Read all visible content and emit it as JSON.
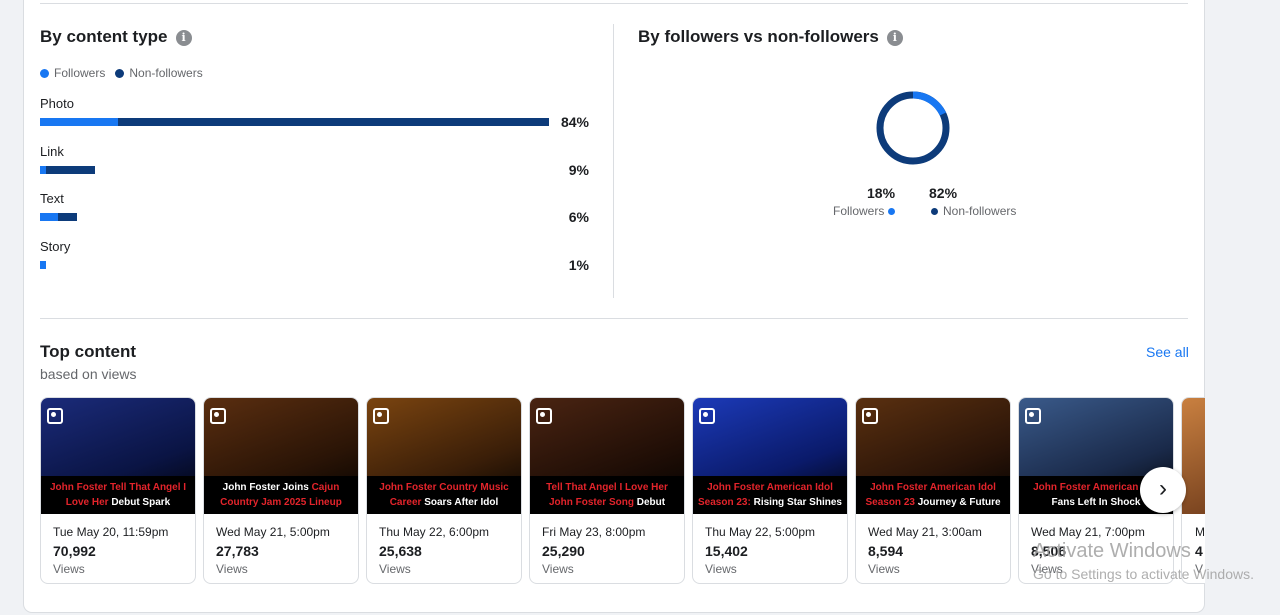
{
  "content_type": {
    "title": "By content type",
    "legend": {
      "followers": "Followers",
      "non_followers": "Non-followers"
    },
    "rows": [
      {
        "label": "Photo",
        "pct": "84%",
        "followers_frac": 0.155,
        "nonfollowers_frac": 0.855
      },
      {
        "label": "Link",
        "pct": "9%",
        "followers_frac": 0.012,
        "nonfollowers_frac": 0.098
      },
      {
        "label": "Text",
        "pct": "6%",
        "followers_frac": 0.036,
        "nonfollowers_frac": 0.038
      },
      {
        "label": "Story",
        "pct": "1%",
        "followers_frac": 0.012,
        "nonfollowers_frac": 0.0
      }
    ]
  },
  "followers_split": {
    "title": "By followers vs non-followers",
    "followers_pct": "18%",
    "non_followers_pct": "82%",
    "followers_label": "Followers",
    "non_followers_label": "Non-followers",
    "followers_value": 18,
    "non_followers_value": 82
  },
  "top_content": {
    "title": "Top content",
    "subtitle": "based on views",
    "see_all": "See all",
    "items": [
      {
        "cap_red": "John Foster Tell That Angel I Love Her",
        "cap_white": "Debut Spark",
        "date": "Tue May 20, 11:59pm",
        "views": "70,992",
        "unit": "Views"
      },
      {
        "cap_white": "John Foster Joins",
        "cap_red": "Cajun Country Jam 2025 Lineup",
        "date": "Wed May 21, 5:00pm",
        "views": "27,783",
        "unit": "Views"
      },
      {
        "cap_red": "John Foster Country Music Career",
        "cap_white": "Soars After Idol",
        "date": "Thu May 22, 6:00pm",
        "views": "25,638",
        "unit": "Views"
      },
      {
        "cap_red": "Tell That Angel I Love Her John Foster Song",
        "cap_white": "Debut",
        "date": "Fri May 23, 8:00pm",
        "views": "25,290",
        "unit": "Views"
      },
      {
        "cap_red": "John Foster American Idol Season 23:",
        "cap_white": "Rising Star Shines",
        "date": "Thu May 22, 5:00pm",
        "views": "15,402",
        "unit": "Views"
      },
      {
        "cap_red": "John Foster American Idol Season 23",
        "cap_white": "Journey & Future",
        "date": "Wed May 21, 3:00am",
        "views": "8,594",
        "unit": "Views"
      },
      {
        "cap_red": "John Foster American Idol",
        "cap_white": "Fans Left In Shock",
        "date": "Wed May 21, 7:00pm",
        "views": "8,506",
        "unit": "Views"
      },
      {
        "cap_red": "",
        "cap_white": "",
        "date": "M",
        "views": "4",
        "unit": "V"
      }
    ]
  },
  "watermark": {
    "line1": "Activate Windows",
    "line2": "Go to Settings to activate Windows."
  },
  "colors": {
    "followers": "#1877f2",
    "non_followers": "#0d3b7a",
    "link": "#1877f2"
  }
}
